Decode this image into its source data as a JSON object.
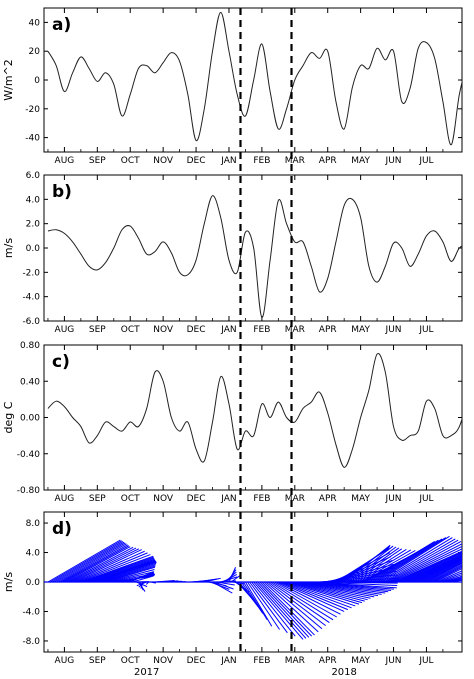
{
  "chart_data": [
    {
      "type": "line",
      "panel_label": "a)",
      "ylabel": "W/m^2",
      "ylim": [
        -50,
        50
      ],
      "yticks": [
        -40,
        -20,
        0,
        20,
        40
      ],
      "ytick_labels": [
        "-40",
        "-20",
        "0",
        "20",
        "40"
      ],
      "grid": false,
      "x_months": [
        -0.5,
        -0.25,
        0,
        0.25,
        0.5,
        0.75,
        1,
        1.25,
        1.5,
        1.75,
        2,
        2.25,
        2.5,
        2.75,
        3,
        3.25,
        3.5,
        3.75,
        4,
        4.25,
        4.5,
        4.75,
        5,
        5.25,
        5.5,
        5.75,
        6,
        6.25,
        6.5,
        6.75,
        7,
        7.25,
        7.5,
        7.75,
        8,
        8.25,
        8.5,
        8.75,
        9,
        9.25,
        9.5,
        9.75,
        10,
        10.25,
        10.5,
        10.75,
        11,
        11.25,
        11.5,
        11.75,
        12,
        12.25
      ],
      "series": [
        {
          "values": [
            20,
            10,
            -8,
            5,
            16,
            8,
            -1,
            5,
            -3,
            -25,
            -10,
            8,
            10,
            5,
            12,
            19,
            13,
            -10,
            -42,
            -20,
            20,
            47,
            20,
            -10,
            -25,
            0,
            25,
            -8,
            -34,
            -20,
            0,
            10,
            19,
            15,
            20,
            -15,
            -34,
            -5,
            10,
            8,
            22,
            14,
            20,
            -15,
            -6,
            22,
            26,
            15,
            -15,
            -45,
            -10,
            14
          ]
        }
      ]
    },
    {
      "type": "line",
      "panel_label": "b)",
      "ylabel": "m/s",
      "ylim": [
        -6.0,
        6.0
      ],
      "yticks": [
        -6.0,
        -4.0,
        -2.0,
        0.0,
        2.0,
        4.0,
        6.0
      ],
      "ytick_labels": [
        "-6.0",
        "-4.0",
        "-2.0",
        "0.0",
        "2.0",
        "4.0",
        "6.0"
      ],
      "grid": false,
      "x_months": [
        -0.5,
        -0.25,
        0,
        0.25,
        0.5,
        0.75,
        1,
        1.25,
        1.5,
        1.75,
        2,
        2.25,
        2.5,
        2.75,
        3,
        3.25,
        3.5,
        3.75,
        4,
        4.25,
        4.5,
        4.75,
        5,
        5.25,
        5.5,
        5.75,
        6,
        6.25,
        6.5,
        6.75,
        7,
        7.25,
        7.5,
        7.75,
        8,
        8.25,
        8.5,
        8.75,
        9,
        9.25,
        9.5,
        9.75,
        10,
        10.25,
        10.5,
        10.75,
        11,
        11.25,
        11.5,
        11.75,
        12,
        12.25
      ],
      "series": [
        {
          "values": [
            1.4,
            1.5,
            1.2,
            0.5,
            -0.5,
            -1.5,
            -1.8,
            -1.2,
            0.0,
            1.5,
            1.8,
            0.8,
            -0.5,
            -0.3,
            0.5,
            -0.4,
            -2.0,
            -2.2,
            -1.0,
            2.0,
            4.3,
            2.5,
            -1.0,
            -2.0,
            1.3,
            0.0,
            -5.7,
            -1.0,
            3.9,
            2.0,
            0.5,
            0.5,
            -1.5,
            -3.6,
            -2.5,
            0.5,
            3.5,
            4.0,
            2.5,
            -1.5,
            -2.8,
            -1.5,
            0.4,
            0.0,
            -1.5,
            -0.5,
            1.0,
            1.4,
            0.5,
            -1.1,
            0.0,
            0.4
          ]
        }
      ]
    },
    {
      "type": "line",
      "panel_label": "c)",
      "ylabel": "deg C",
      "ylim": [
        -0.8,
        0.8
      ],
      "yticks": [
        -0.8,
        -0.4,
        0.0,
        0.4,
        0.8
      ],
      "ytick_labels": [
        "-0.80",
        "-0.40",
        "0.00",
        "0.40",
        "0.80"
      ],
      "grid": false,
      "x_months": [
        -0.5,
        -0.25,
        0,
        0.25,
        0.5,
        0.75,
        1,
        1.25,
        1.5,
        1.75,
        2,
        2.25,
        2.5,
        2.75,
        3,
        3.25,
        3.5,
        3.75,
        4,
        4.25,
        4.5,
        4.75,
        5,
        5.25,
        5.5,
        5.75,
        6,
        6.25,
        6.5,
        6.75,
        7,
        7.25,
        7.5,
        7.75,
        8,
        8.25,
        8.5,
        8.75,
        9,
        9.25,
        9.5,
        9.75,
        10,
        10.25,
        10.5,
        10.75,
        11,
        11.25,
        11.5,
        11.75,
        12,
        12.25
      ],
      "series": [
        {
          "values": [
            0.1,
            0.18,
            0.12,
            0.0,
            -0.1,
            -0.28,
            -0.2,
            -0.05,
            -0.1,
            -0.15,
            -0.05,
            -0.1,
            0.1,
            0.5,
            0.4,
            0.0,
            -0.15,
            -0.05,
            -0.35,
            -0.48,
            -0.05,
            0.45,
            0.15,
            -0.35,
            -0.15,
            -0.2,
            0.15,
            0.0,
            0.17,
            0.0,
            -0.05,
            0.1,
            0.17,
            0.28,
            0.05,
            -0.3,
            -0.55,
            -0.35,
            0.0,
            0.3,
            0.7,
            0.5,
            -0.1,
            -0.25,
            -0.2,
            -0.15,
            0.18,
            0.1,
            -0.2,
            -0.2,
            -0.1,
            0.2
          ]
        }
      ]
    },
    {
      "type": "vector",
      "panel_label": "d)",
      "ylabel": "m/s",
      "ylim": [
        -9.5,
        9.5
      ],
      "yticks": [
        -8.0,
        -4.0,
        0.0,
        4.0,
        8.0
      ],
      "ytick_labels": [
        "-8.0",
        "-4.0",
        "0.0",
        "4.0",
        "8.0"
      ],
      "grid": false,
      "color": "#0000ff",
      "stick_x_months": [
        -0.5,
        -0.25,
        0,
        0.25,
        0.5,
        0.75,
        1,
        1.25,
        1.5,
        1.75,
        2,
        2.25,
        2.5,
        2.75,
        3,
        3.25,
        3.5,
        3.75,
        4,
        4.25,
        4.5,
        4.75,
        5,
        5.25,
        5.5,
        5.75,
        6,
        6.25,
        6.5,
        6.75,
        7,
        7.25,
        7.5,
        7.75,
        8,
        8.25,
        8.5,
        8.75,
        9,
        9.25,
        9.5,
        9.75,
        10,
        10.25,
        10.5,
        10.75,
        11,
        11.25,
        11.5,
        11.75
      ],
      "u_months": [
        2.2,
        2.1,
        2.0,
        2.1,
        2.2,
        2.0,
        1.8,
        1.5,
        1.2,
        1.0,
        0.7,
        0.2,
        -0.3,
        0.6,
        0.8,
        0.5,
        0.3,
        0.2,
        0.5,
        0.5,
        0.6,
        0.5,
        0.2,
        0.5,
        0.8,
        1.5,
        1.6,
        1.8,
        2.0,
        2.2,
        2.3,
        2.5,
        2.6,
        2.4,
        2.0,
        1.6,
        1.4,
        1.5,
        1.8,
        2.0,
        2.2,
        2.3,
        2.5,
        2.4,
        2.2,
        2.0,
        1.8,
        1.6,
        1.5,
        1.4
      ],
      "v": [
        5.7,
        5.3,
        4.8,
        4.4,
        3.5,
        3.0,
        2.7,
        2.0,
        0.8,
        1.0,
        1.4,
        -1.3,
        -0.5,
        0.2,
        0.0,
        0.0,
        0.0,
        0.0,
        0.3,
        0.5,
        -1.5,
        0.7,
        2.0,
        -2.5,
        -6.0,
        -7.8,
        -7.2,
        -5.5,
        -4.0,
        -3.0,
        -2.2,
        -1.5,
        -0.8,
        0.5,
        2.4,
        4.5,
        5.0,
        4.5,
        4.2,
        5.5,
        6.2,
        5.5,
        5.0,
        4.8,
        4.6,
        4.5,
        4.2,
        3.5,
        2.0,
        1.0
      ],
      "sticks_per_month": 4
    }
  ],
  "x_axis": {
    "months": [
      "AUG",
      "SEP",
      "OCT",
      "NOV",
      "DEC",
      "JAN",
      "FEB",
      "MAR",
      "APR",
      "MAY",
      "JUN",
      "JUL"
    ],
    "years": [
      {
        "label": "2017",
        "month_index": 2.5
      },
      {
        "label": "2018",
        "month_index": 8.5
      }
    ]
  },
  "vertical_markers": [
    {
      "month_index": 5.35,
      "style": "dashed"
    },
    {
      "month_index": 6.9,
      "style": "dashed"
    }
  ]
}
